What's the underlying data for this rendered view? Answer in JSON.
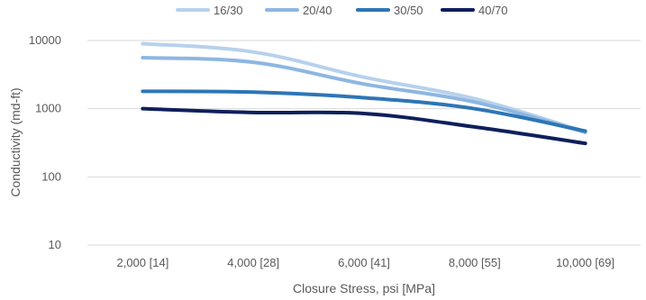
{
  "chart_data": {
    "type": "line",
    "title": "",
    "xlabel": "Closure Stress, psi [MPa]",
    "ylabel": "Conductivity (md-ft)",
    "y_scale": "log",
    "ylim": [
      10,
      10000
    ],
    "y_ticks": [
      "10",
      "100",
      "1000",
      "10000"
    ],
    "categories": [
      "2,000 [14]",
      "4,000 [28]",
      "6,000 [41]",
      "8,000 [55]",
      "10,000 [69]"
    ],
    "legend_position": "top",
    "grid": "horizontal",
    "series": [
      {
        "name": "16/30",
        "color": "#b7d1ec",
        "values": [
          9000,
          6800,
          2900,
          1400,
          460
        ]
      },
      {
        "name": "20/40",
        "color": "#8db6e2",
        "values": [
          5600,
          4800,
          2300,
          1250,
          450
        ]
      },
      {
        "name": "30/50",
        "color": "#2e75b6",
        "values": [
          1800,
          1750,
          1450,
          1000,
          470
        ]
      },
      {
        "name": "40/70",
        "color": "#0e1f5b",
        "values": [
          1000,
          880,
          850,
          540,
          310
        ]
      }
    ]
  }
}
